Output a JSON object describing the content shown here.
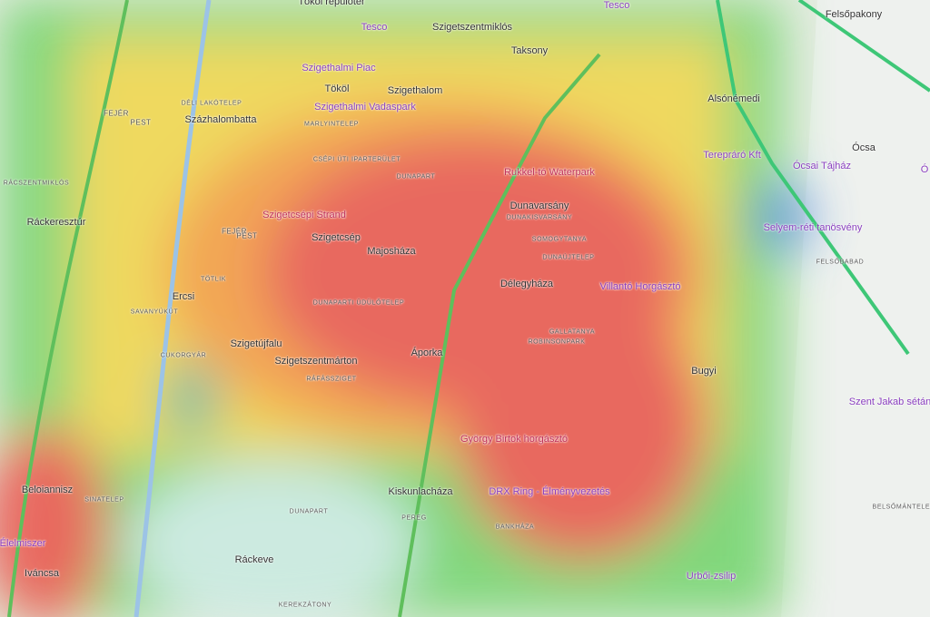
{
  "labels": [
    {
      "text": "Felsőpakony"
    },
    {
      "text": "Alsónémedi"
    },
    {
      "text": "Ócsa"
    },
    {
      "text": "Ócsai Tájház"
    },
    {
      "text": "Ó"
    },
    {
      "text": "Terepráró Kft"
    },
    {
      "text": "Selyem-réti tanösvény"
    },
    {
      "text": "FELSŐBABAD"
    },
    {
      "text": "Szent Jakab sétán"
    },
    {
      "text": "BELSŐMÁNTELEK"
    },
    {
      "text": "Urbői-zsilip"
    },
    {
      "text": "Tesco"
    },
    {
      "text": "Tesco"
    },
    {
      "text": "Szigetszentmiklós"
    },
    {
      "text": "Taksony"
    },
    {
      "text": "Szigethalmi Piac"
    },
    {
      "text": "Tököl"
    },
    {
      "text": "Szigethalom"
    },
    {
      "text": "Szigethalmi Vadaspark"
    },
    {
      "text": "MARLYINTELEP"
    },
    {
      "text": "CSÉPI ÚTI IPARTERÜLET"
    },
    {
      "text": "DUNAPART"
    },
    {
      "text": "Rukkel-tó Waterpark"
    },
    {
      "text": "Dunavarsány"
    },
    {
      "text": "DUNAKISVARSÁNY"
    },
    {
      "text": "SOMOGYTANYA"
    },
    {
      "text": "DUNAÚJTELEP"
    },
    {
      "text": "Délegyháza"
    },
    {
      "text": "Villantó Horgásztó"
    },
    {
      "text": "GALLATANYA"
    },
    {
      "text": "ROBINSONPARK"
    },
    {
      "text": "Bugyi"
    },
    {
      "text": "Szigetcsépi Strand"
    },
    {
      "text": "Szigetcsép"
    },
    {
      "text": "Majosháza"
    },
    {
      "text": "DUNAPARTI ÜDÜLŐTELEP"
    },
    {
      "text": "Szigetújfalu"
    },
    {
      "text": "Szigetszentmárton"
    },
    {
      "text": "RÁFÁSSZIGET"
    },
    {
      "text": "Áporka"
    },
    {
      "text": "György Birtok horgásztó"
    },
    {
      "text": "Kiskunlacháza"
    },
    {
      "text": "PEREG"
    },
    {
      "text": "DRX Ring - Élményvezetés"
    },
    {
      "text": "BANKHÁZA"
    },
    {
      "text": "Ráckeve"
    },
    {
      "text": "DUNAPART"
    },
    {
      "text": "KEREKZÁTONY"
    },
    {
      "text": "Százhalombatta"
    },
    {
      "text": "DÉLI LAKÓTELEP"
    },
    {
      "text": "RÁCSZENTMIKLÓS"
    },
    {
      "text": "Ráckeresztúr"
    },
    {
      "text": "Ercsi"
    },
    {
      "text": "SAVANYÚKÚT"
    },
    {
      "text": "TÖTLIK"
    },
    {
      "text": "CUKORGYÁR"
    },
    {
      "text": "SINATELEP"
    },
    {
      "text": "Beloiannisz"
    },
    {
      "text": "Iváncsa"
    },
    {
      "text": "Élelmiszer"
    },
    {
      "text": "Tököl repülőtér"
    },
    {
      "text": "FEJÉR"
    },
    {
      "text": "PEST"
    },
    {
      "text": "FEJÉR"
    },
    {
      "text": "PEST"
    }
  ]
}
